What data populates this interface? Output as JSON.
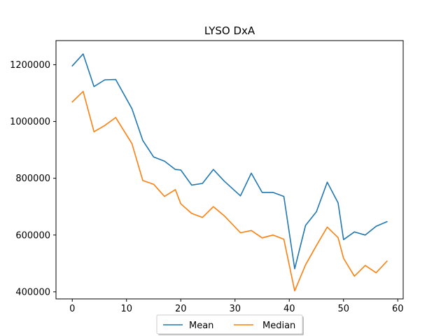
{
  "chart_data": {
    "type": "line",
    "title": "LYSO DxA",
    "xlabel": "",
    "ylabel": "",
    "xlim": [
      -3,
      61
    ],
    "ylim": [
      375000,
      1285000
    ],
    "xticks": [
      0,
      10,
      20,
      30,
      40,
      50,
      60
    ],
    "yticks": [
      400000,
      600000,
      800000,
      1000000,
      1200000
    ],
    "xtick_labels": [
      "0",
      "10",
      "20",
      "30",
      "40",
      "50",
      "60"
    ],
    "ytick_labels": [
      "400000",
      "600000",
      "800000",
      "1000000",
      "1200000"
    ],
    "grid": false,
    "legend_position": "bottom-center",
    "x": [
      0,
      2,
      4,
      6,
      8,
      11,
      13,
      15,
      17,
      19,
      20,
      22,
      24,
      26,
      28,
      31,
      33,
      35,
      37,
      39,
      41,
      43,
      45,
      47,
      49,
      50,
      52,
      54,
      56,
      58
    ],
    "series": [
      {
        "name": "Mean",
        "color": "#1f77b4",
        "values": [
          1196000,
          1238000,
          1123000,
          1147000,
          1148000,
          1045000,
          933000,
          875000,
          860000,
          831000,
          829000,
          776000,
          782000,
          831000,
          790000,
          738000,
          818000,
          750000,
          750000,
          736000,
          481000,
          634000,
          682000,
          786000,
          713000,
          584000,
          611000,
          600000,
          631000,
          647000
        ]
      },
      {
        "name": "Median",
        "color": "#ff7f0e",
        "values": [
          1069000,
          1106000,
          964000,
          986000,
          1014000,
          922000,
          792000,
          779000,
          736000,
          760000,
          710000,
          676000,
          662000,
          700000,
          668000,
          608000,
          616000,
          590000,
          600000,
          585000,
          403000,
          495000,
          563000,
          628000,
          591000,
          518000,
          455000,
          493000,
          467000,
          508000
        ]
      }
    ]
  }
}
